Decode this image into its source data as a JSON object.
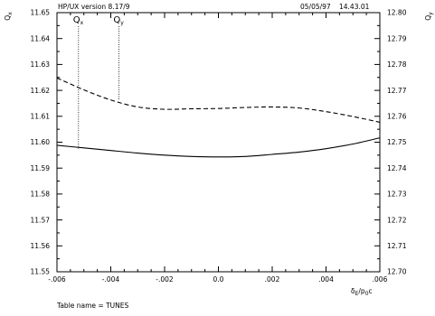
{
  "header": {
    "left": "HP/UX version 8.17/9",
    "date": "05/05/97",
    "time": "14.43.01"
  },
  "footer": "Table name = TUNES",
  "chart_data": {
    "type": "line",
    "title": "",
    "xlabel": {
      "main": "δ",
      "sub": "E",
      "rest": "/p",
      "sub2": "0",
      "tail": "c"
    },
    "ylabel_left": {
      "main": "Q",
      "sub": "x"
    },
    "ylabel_right": {
      "main": "Q",
      "sub": "y"
    },
    "xlim": [
      -0.006,
      0.006
    ],
    "ylim_left": [
      11.55,
      11.65
    ],
    "ylim_right": [
      12.7,
      12.8
    ],
    "x_ticks": [
      -0.006,
      -0.004,
      -0.002,
      0.0,
      0.002,
      0.004,
      0.006
    ],
    "x_tick_labels": [
      "-.006",
      "-.004",
      "-.002",
      "0.0",
      ".002",
      ".004",
      ".006"
    ],
    "y_left_ticks": [
      11.55,
      11.56,
      11.57,
      11.58,
      11.59,
      11.6,
      11.61,
      11.62,
      11.63,
      11.64,
      11.65
    ],
    "y_left_tick_labels": [
      "11.55",
      "11.56",
      "11.57",
      "11.58",
      "11.59",
      "11.60",
      "11.61",
      "11.62",
      "11.63",
      "11.64",
      "11.65"
    ],
    "y_right_ticks": [
      12.7,
      12.71,
      12.72,
      12.73,
      12.74,
      12.75,
      12.76,
      12.77,
      12.78,
      12.79,
      12.8
    ],
    "y_right_tick_labels": [
      "12.70",
      "12.71",
      "12.72",
      "12.73",
      "12.74",
      "12.75",
      "12.76",
      "12.77",
      "12.78",
      "12.79",
      "12.80"
    ],
    "grid": false,
    "series": [
      {
        "axis": "left",
        "style": "solid",
        "x": [
          -0.006,
          -0.005,
          -0.004,
          -0.003,
          -0.002,
          -0.001,
          0.0,
          0.001,
          0.002,
          0.003,
          0.004,
          0.005,
          0.006
        ],
        "y": [
          11.5988,
          11.5978,
          11.5968,
          11.5958,
          11.595,
          11.5945,
          11.5943,
          11.5945,
          11.5953,
          11.5962,
          11.5975,
          11.5993,
          11.6017
        ]
      },
      {
        "axis": "right",
        "style": "dashed",
        "x": [
          -0.006,
          -0.005,
          -0.004,
          -0.003,
          -0.002,
          -0.001,
          0.0,
          0.001,
          0.002,
          0.003,
          0.004,
          0.005,
          0.006
        ],
        "y": [
          12.7748,
          12.7702,
          12.7663,
          12.7636,
          12.7627,
          12.7629,
          12.763,
          12.7634,
          12.7636,
          12.7632,
          12.7618,
          12.7599,
          12.7577
        ]
      }
    ],
    "markers": [
      {
        "label": "Q",
        "sub": "x",
        "x": -0.0052
      },
      {
        "label": "Q",
        "sub": "y",
        "x": -0.0037
      }
    ]
  }
}
